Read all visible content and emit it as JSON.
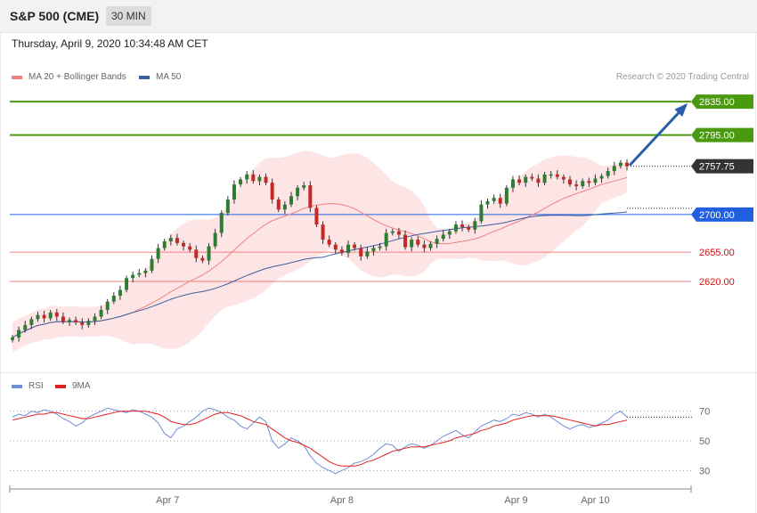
{
  "header": {
    "symbol": "S&P 500 (CME)",
    "timeframe": "30 MIN",
    "datetime": "Thursday, April 9, 2020 10:34:48 AM CET"
  },
  "legend": {
    "ma20_label": "MA 20 + Bollinger Bands",
    "ma50_label": "MA 50",
    "credit": "Research © 2020 Trading Central"
  },
  "rsi_legend": {
    "rsi_label": "RSI",
    "ma_label": "9MA"
  },
  "colors": {
    "up_candle": "#2e7d32",
    "down_candle": "#c62828",
    "ma20": "#f08080",
    "bollinger_fill": "#fde0e0",
    "ma50": "#3c5fa0",
    "resistance": "#4a9a10",
    "support": "#f08080",
    "pivot": "#2060e0",
    "current": "#333333",
    "arrow": "#2a5ea8",
    "rsi": "#6f8fd8",
    "rsi_ma": "#e02020"
  },
  "levels": [
    {
      "label": "2835.00",
      "value": 2835.0,
      "kind": "resistance"
    },
    {
      "label": "2795.00",
      "value": 2795.0,
      "kind": "resistance"
    },
    {
      "label": "2757.75",
      "value": 2757.75,
      "kind": "current"
    },
    {
      "label": "2700.00",
      "value": 2700.0,
      "kind": "pivot"
    },
    {
      "label": "2655.00",
      "value": 2655.0,
      "kind": "support"
    },
    {
      "label": "2620.00",
      "value": 2620.0,
      "kind": "support"
    }
  ],
  "chart_data": [
    {
      "type": "candlestick",
      "title": "S&P 500 (CME)",
      "x_labels": [
        "Apr 7",
        "Apr 8",
        "Apr 9",
        "Apr 10"
      ],
      "x_label_positions_bar": [
        24.5,
        52,
        79.5,
        92
      ],
      "ylim": [
        2520,
        2850
      ],
      "close": [
        2553,
        2562,
        2568,
        2575,
        2580,
        2576,
        2583,
        2578,
        2572,
        2574,
        2571,
        2568,
        2573,
        2578,
        2586,
        2596,
        2603,
        2610,
        2624,
        2628,
        2630,
        2633,
        2647,
        2660,
        2668,
        2672,
        2666,
        2662,
        2658,
        2648,
        2645,
        2662,
        2678,
        2702,
        2718,
        2736,
        2742,
        2748,
        2740,
        2745,
        2738,
        2718,
        2706,
        2712,
        2722,
        2732,
        2735,
        2708,
        2688,
        2670,
        2664,
        2658,
        2654,
        2664,
        2660,
        2650,
        2656,
        2660,
        2662,
        2678,
        2680,
        2676,
        2661,
        2670,
        2664,
        2660,
        2665,
        2671,
        2676,
        2680,
        2688,
        2685,
        2682,
        2692,
        2712,
        2716,
        2720,
        2713,
        2732,
        2742,
        2738,
        2745,
        2743,
        2738,
        2748,
        2748,
        2745,
        2742,
        2736,
        2734,
        2740,
        2738,
        2743,
        2746,
        2752,
        2758,
        2762,
        2757.75
      ],
      "series": [
        {
          "name": "MA 20",
          "note": "smoothed average of closes"
        },
        {
          "name": "MA 50",
          "note": "smoothed average of closes"
        }
      ]
    },
    {
      "type": "line",
      "title": "",
      "ylim": [
        20,
        80
      ],
      "y_ticks": [
        30,
        50,
        70
      ],
      "series": [
        {
          "name": "RSI",
          "values": [
            66,
            68,
            67,
            70,
            69,
            71,
            70,
            68,
            65,
            63,
            60,
            62,
            66,
            68,
            70,
            72,
            71,
            70,
            69,
            71,
            70,
            68,
            66,
            62,
            55,
            52,
            58,
            60,
            63,
            66,
            70,
            72,
            71,
            69,
            66,
            64,
            60,
            58,
            62,
            66,
            63,
            50,
            45,
            48,
            52,
            50,
            47,
            40,
            35,
            32,
            30,
            28,
            30,
            32,
            35,
            36,
            38,
            41,
            45,
            48,
            47,
            43,
            46,
            48,
            47,
            45,
            47,
            50,
            53,
            55,
            57,
            54,
            52,
            56,
            60,
            62,
            64,
            63,
            65,
            68,
            67,
            69,
            68,
            66,
            68,
            66,
            63,
            60,
            58,
            60,
            61,
            59,
            60,
            62,
            64,
            68,
            70,
            66
          ]
        },
        {
          "name": "9MA",
          "values": [
            64,
            65,
            66,
            67,
            68,
            68,
            69,
            69,
            68,
            67,
            66,
            65,
            65,
            66,
            67,
            68,
            69,
            70,
            70,
            70,
            70,
            70,
            69,
            68,
            66,
            63,
            62,
            61,
            61,
            62,
            64,
            66,
            68,
            69,
            69,
            68,
            67,
            65,
            63,
            62,
            61,
            58,
            55,
            52,
            50,
            49,
            47,
            45,
            42,
            39,
            36,
            34,
            33,
            33,
            33,
            34,
            36,
            37,
            39,
            41,
            43,
            44,
            45,
            46,
            46,
            46,
            47,
            48,
            49,
            50,
            52,
            53,
            54,
            55,
            57,
            58,
            60,
            61,
            62,
            64,
            65,
            66,
            67,
            67,
            67,
            67,
            66,
            65,
            64,
            63,
            62,
            61,
            60,
            61,
            61,
            62,
            63,
            64
          ]
        }
      ]
    }
  ]
}
